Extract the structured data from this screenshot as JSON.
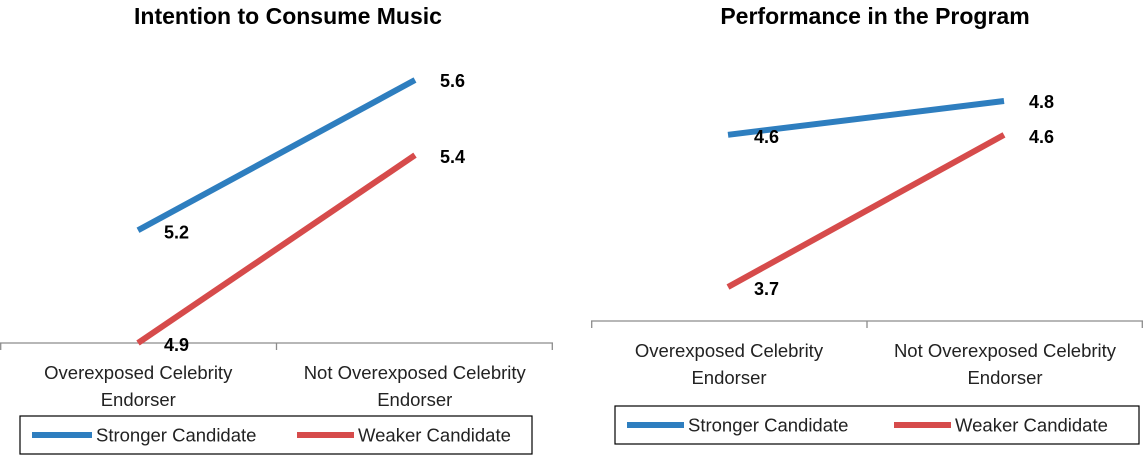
{
  "chart_data": [
    {
      "type": "line",
      "title": "Intention to Consume Music",
      "categories": [
        "Overexposed Celebrity Endorser",
        "Not Overexposed Celebrity Endorser"
      ],
      "category_lines": [
        [
          "Overexposed Celebrity",
          "Endorser"
        ],
        [
          "Not Overexposed Celebrity",
          "Endorser"
        ]
      ],
      "ylim": [
        4.9,
        5.7
      ],
      "legend_position": "bottom",
      "grid": false,
      "series": [
        {
          "name": "Stronger Candidate",
          "values": [
            5.2,
            5.6
          ],
          "labels": [
            "5.2",
            "5.6"
          ],
          "color": "#2E7EBF"
        },
        {
          "name": "Weaker Candidate",
          "values": [
            4.9,
            5.4
          ],
          "labels": [
            "4.9",
            "5.4"
          ],
          "color": "#D64B4B"
        }
      ]
    },
    {
      "type": "line",
      "title": "Performance in the Program",
      "categories": [
        "Overexposed Celebrity Endorser",
        "Not Overexposed Celebrity Endorser"
      ],
      "category_lines": [
        [
          "Overexposed Celebrity",
          "Endorser"
        ],
        [
          "Not Overexposed Celebrity",
          "Endorser"
        ]
      ],
      "ylim": [
        3.5,
        5.0
      ],
      "legend_position": "bottom",
      "grid": false,
      "series": [
        {
          "name": "Stronger Candidate",
          "values": [
            4.6,
            4.8
          ],
          "labels": [
            "4.6",
            "4.8"
          ],
          "color": "#2E7EBF"
        },
        {
          "name": "Weaker Candidate",
          "values": [
            3.7,
            4.6
          ],
          "labels": [
            "3.7",
            "4.6"
          ],
          "color": "#D64B4B"
        }
      ]
    }
  ]
}
